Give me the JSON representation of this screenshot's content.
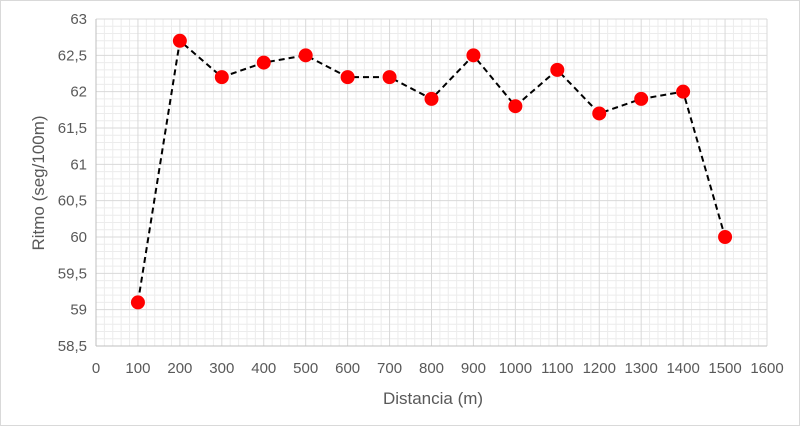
{
  "chart_data": {
    "type": "scatter",
    "title": "",
    "xlabel": "Distancia (m)",
    "ylabel": "Ritmo (seg/100m)",
    "xlim": [
      0,
      1600
    ],
    "ylim": [
      58.5,
      63
    ],
    "x_ticks": [
      0,
      100,
      200,
      300,
      400,
      500,
      600,
      700,
      800,
      900,
      1000,
      1100,
      1200,
      1300,
      1400,
      1500,
      1600
    ],
    "x_tick_labels": [
      "0",
      "100",
      "200",
      "300",
      "400",
      "500",
      "600",
      "700",
      "800",
      "900",
      "1000",
      "1100",
      "1200",
      "1300",
      "1400",
      "1500",
      "1600"
    ],
    "y_ticks": [
      58.5,
      59,
      59.5,
      60,
      60.5,
      61,
      61.5,
      62,
      62.5,
      63
    ],
    "y_tick_labels": [
      "58,5",
      "59",
      "59,5",
      "60",
      "60,5",
      "61",
      "61,5",
      "62",
      "62,5",
      "63"
    ],
    "grid": "major and minor",
    "legend": "none",
    "series": [
      {
        "x": [
          100,
          200,
          300,
          400,
          500,
          600,
          700,
          800,
          900,
          1000,
          1100,
          1200,
          1300,
          1400,
          1500
        ],
        "y": [
          59.1,
          62.7,
          62.2,
          62.4,
          62.5,
          62.2,
          62.2,
          61.9,
          62.5,
          61.8,
          62.3,
          61.7,
          61.9,
          62.0,
          60.0
        ],
        "marker_color": "#ff0000",
        "line_color": "#000000",
        "line_style": "dashed"
      }
    ]
  }
}
